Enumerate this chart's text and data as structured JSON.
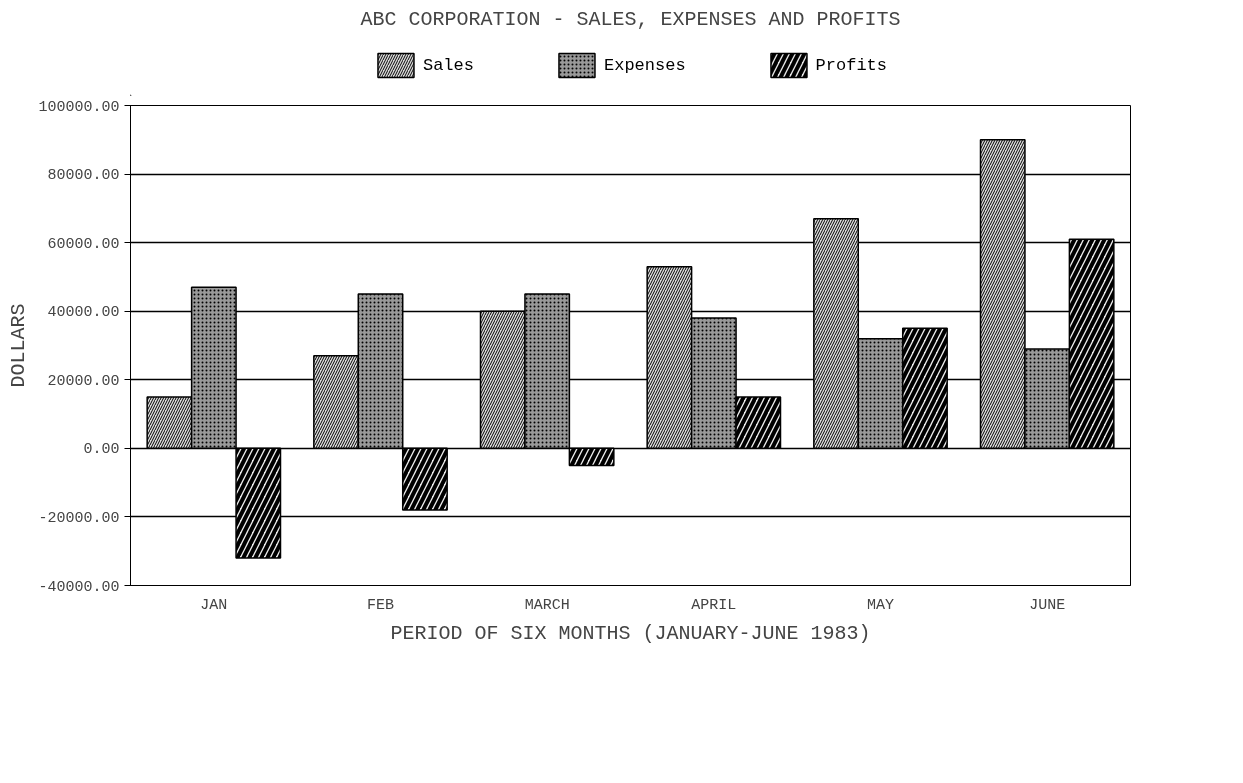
{
  "chart_data": {
    "type": "bar",
    "title": "ABC CORPORATION - SALES, EXPENSES AND PROFITS",
    "xlabel": "PERIOD OF SIX MONTHS (JANUARY-JUNE 1983)",
    "ylabel": "DOLLARS",
    "categories": [
      "JAN",
      "FEB",
      "MARCH",
      "APRIL",
      "MAY",
      "JUNE"
    ],
    "series": [
      {
        "name": "Sales",
        "color": "#dddddd",
        "values": [
          15000,
          27000,
          40000,
          53000,
          67000,
          90000
        ]
      },
      {
        "name": "Expenses",
        "color": "#999999",
        "values": [
          47000,
          45000,
          45000,
          38000,
          32000,
          29000
        ]
      },
      {
        "name": "Profits",
        "color": "#eeeeee",
        "values": [
          -32000,
          -18000,
          -5000,
          15000,
          35000,
          61000
        ]
      }
    ],
    "ylim": [
      -40000,
      100000
    ],
    "yticks": [
      {
        "value": -40000,
        "label": "-40000.00"
      },
      {
        "value": -20000,
        "label": "-20000.00"
      },
      {
        "value": 0,
        "label": "0.00"
      },
      {
        "value": 20000,
        "label": "20000.00"
      },
      {
        "value": 40000,
        "label": "40000.00"
      },
      {
        "value": 60000,
        "label": "60000.00"
      },
      {
        "value": 80000,
        "label": "80000.00"
      },
      {
        "value": 100000,
        "label": "100000.00"
      }
    ],
    "grid": "y",
    "legend": "top"
  }
}
